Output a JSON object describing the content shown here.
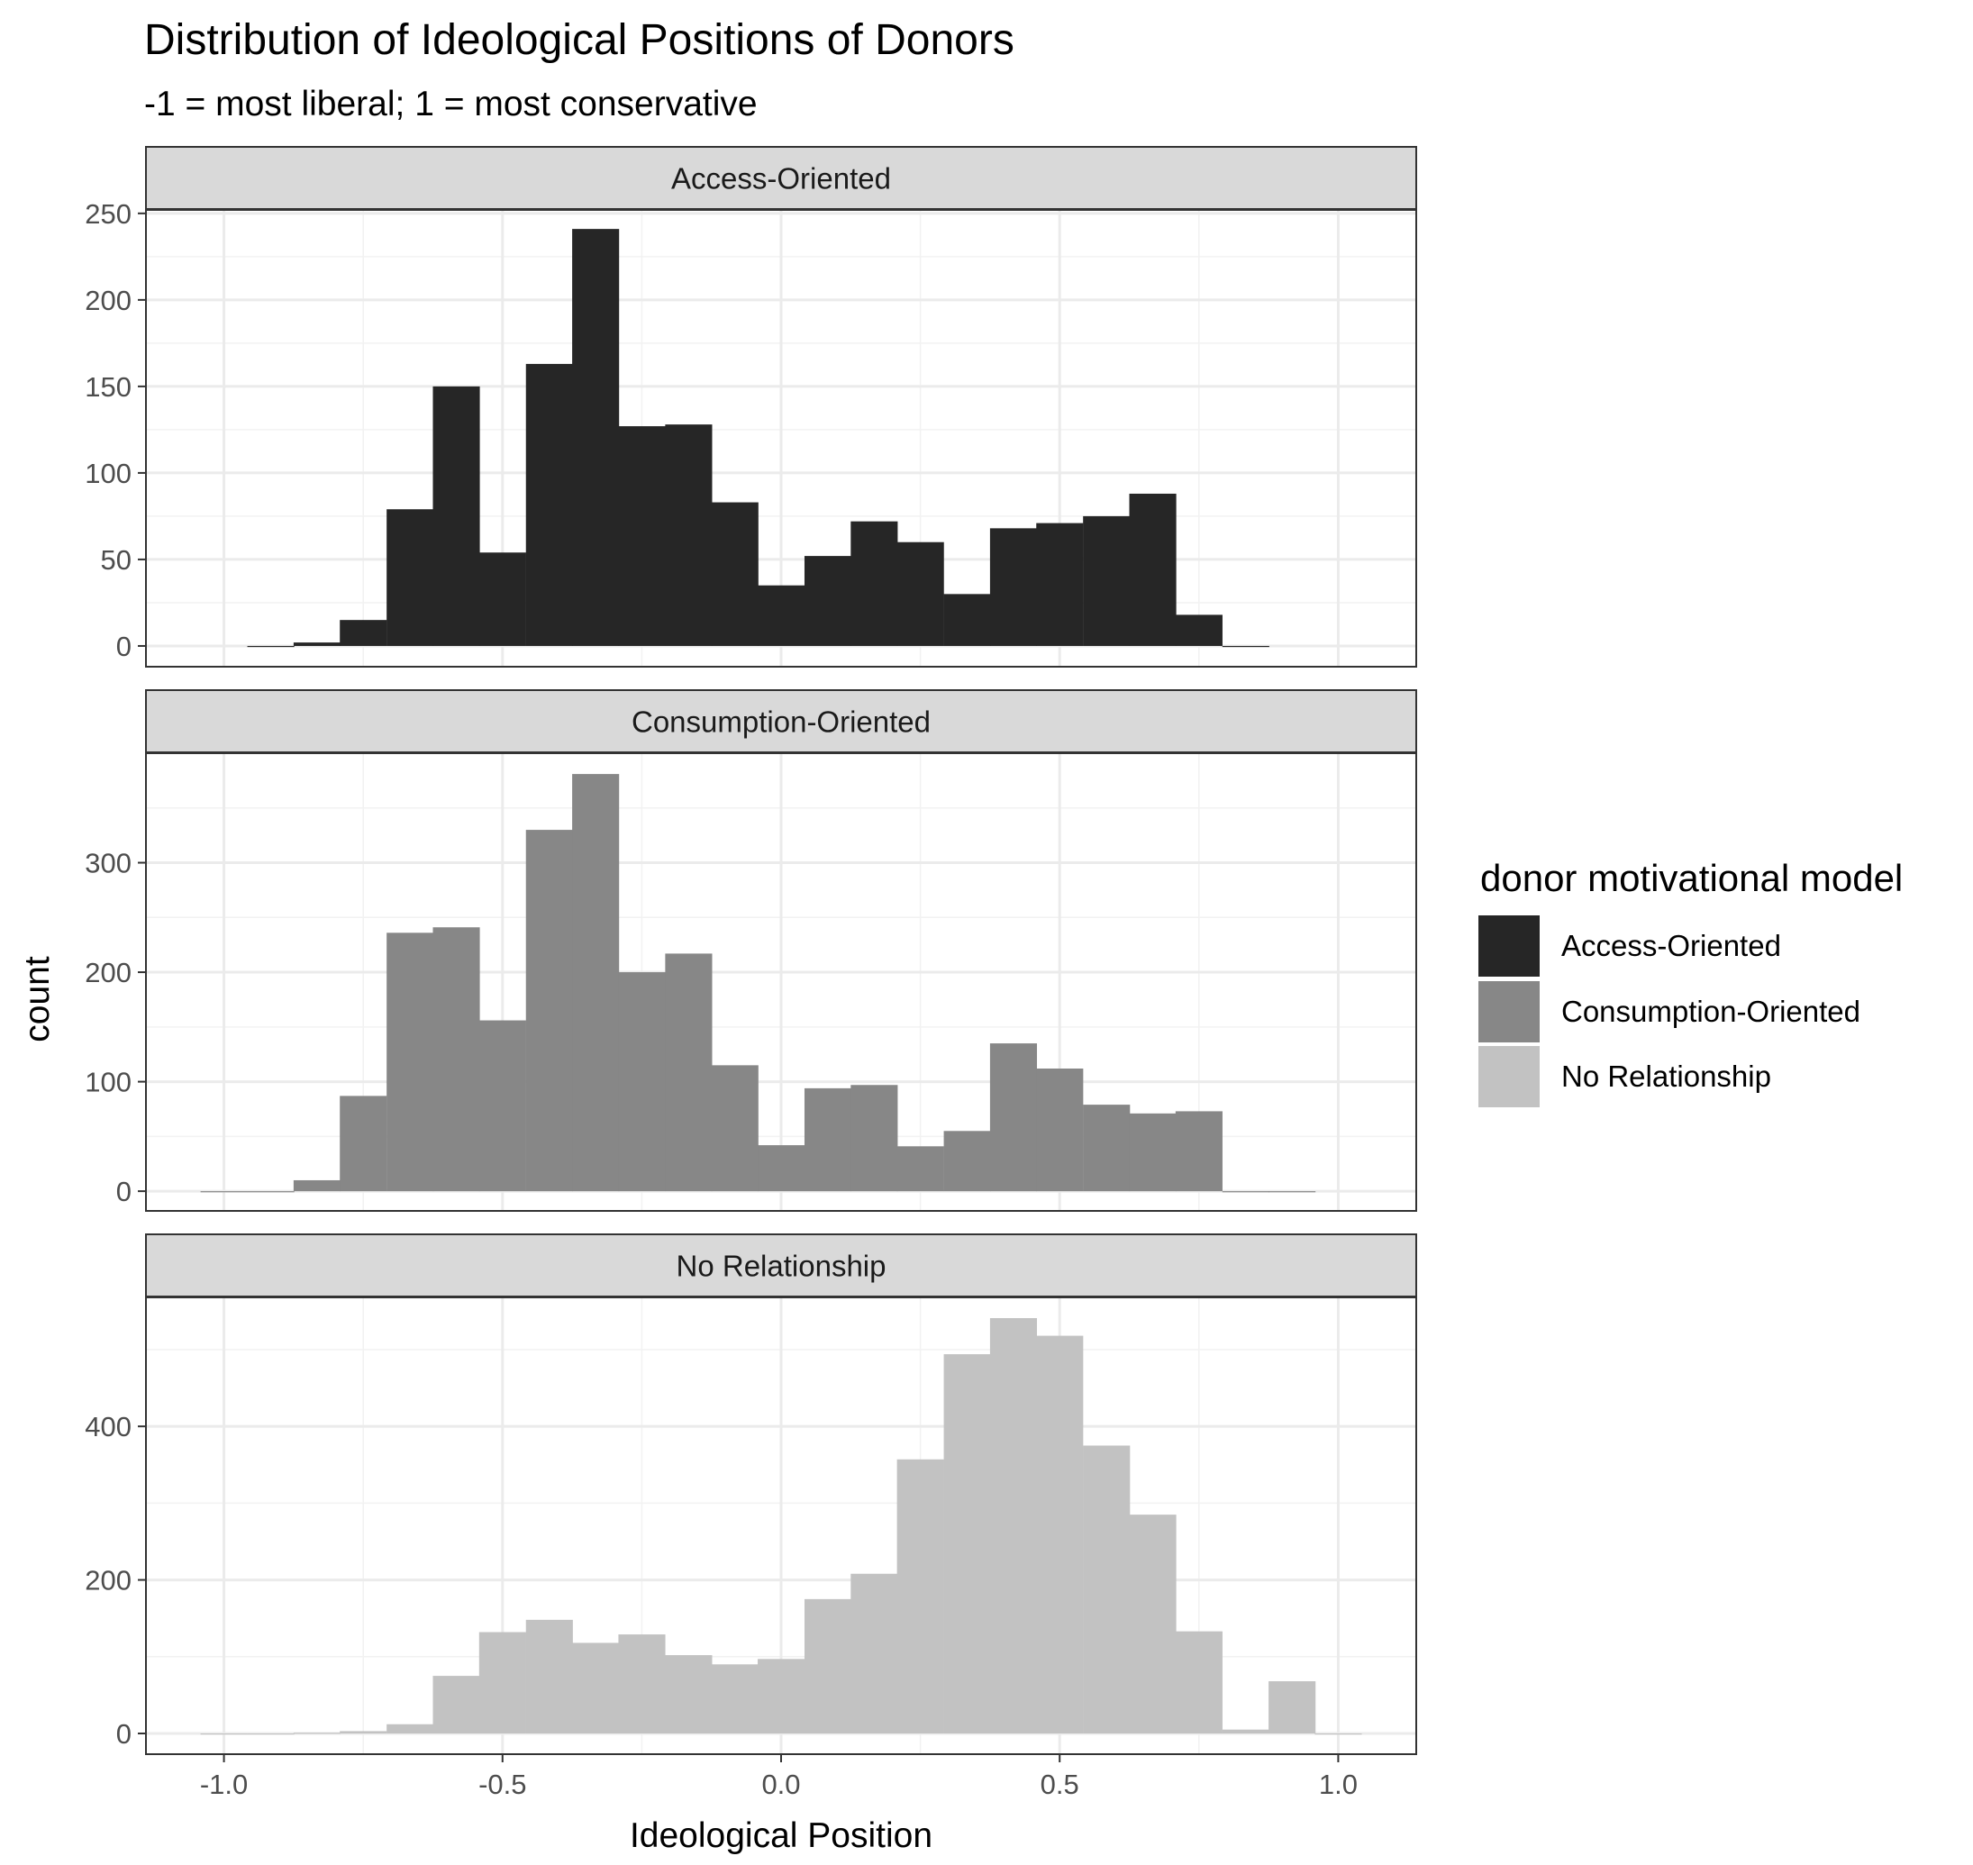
{
  "title": "Distribution of Ideological Positions of Donors",
  "subtitle": "-1 = most liberal; 1 = most conservative",
  "chart_data": {
    "type": "bar",
    "subtype": "faceted histogram",
    "title": "Distribution of Ideological Positions of Donors",
    "subtitle": "-1 = most liberal; 1 = most conservative",
    "xlabel": "Ideological Position",
    "ylabel": "count",
    "xlim": [
      -1.14,
      1.14
    ],
    "x_ticks": [
      -1.0,
      -0.5,
      0.0,
      0.5,
      1.0
    ],
    "x_tick_labels": [
      "-1.0",
      "-0.5",
      "0.0",
      "0.5",
      "1.0"
    ],
    "bin_width": 0.0833,
    "grid": true,
    "legend": {
      "title": "donor motivational model",
      "position": "right",
      "entries": [
        "Access-Oriented",
        "Consumption-Oriented",
        "No Relationship"
      ]
    },
    "facets": [
      {
        "label": "Access-Oriented",
        "color": "#262626",
        "ylim": [
          -12,
          252
        ],
        "y_ticks": [
          0,
          50,
          100,
          150,
          200,
          250
        ],
        "bins": [
          {
            "x0": -0.958,
            "count": 0
          },
          {
            "x0": -0.875,
            "count": 2
          },
          {
            "x0": -0.792,
            "count": 15
          },
          {
            "x0": -0.708,
            "count": 79
          },
          {
            "x0": -0.625,
            "count": 150
          },
          {
            "x0": -0.542,
            "count": 54
          },
          {
            "x0": -0.458,
            "count": 163
          },
          {
            "x0": -0.375,
            "count": 241
          },
          {
            "x0": -0.292,
            "count": 127
          },
          {
            "x0": -0.208,
            "count": 128
          },
          {
            "x0": -0.125,
            "count": 83
          },
          {
            "x0": -0.042,
            "count": 35
          },
          {
            "x0": 0.042,
            "count": 52
          },
          {
            "x0": 0.125,
            "count": 72
          },
          {
            "x0": 0.208,
            "count": 60
          },
          {
            "x0": 0.292,
            "count": 30
          },
          {
            "x0": 0.375,
            "count": 68
          },
          {
            "x0": 0.458,
            "count": 71
          },
          {
            "x0": 0.542,
            "count": 75
          },
          {
            "x0": 0.625,
            "count": 88
          },
          {
            "x0": 0.708,
            "count": 18
          },
          {
            "x0": 0.792,
            "count": 0
          }
        ]
      },
      {
        "label": "Consumption-Oriented",
        "color": "#878787",
        "ylim": [
          -18,
          400
        ],
        "y_ticks": [
          0,
          100,
          200,
          300
        ],
        "bins": [
          {
            "x0": -1.042,
            "count": 0
          },
          {
            "x0": -0.958,
            "count": 0
          },
          {
            "x0": -0.875,
            "count": 10
          },
          {
            "x0": -0.792,
            "count": 87
          },
          {
            "x0": -0.708,
            "count": 236
          },
          {
            "x0": -0.625,
            "count": 241
          },
          {
            "x0": -0.542,
            "count": 156
          },
          {
            "x0": -0.458,
            "count": 330
          },
          {
            "x0": -0.375,
            "count": 381
          },
          {
            "x0": -0.292,
            "count": 200
          },
          {
            "x0": -0.208,
            "count": 217
          },
          {
            "x0": -0.125,
            "count": 115
          },
          {
            "x0": -0.042,
            "count": 42
          },
          {
            "x0": 0.042,
            "count": 94
          },
          {
            "x0": 0.125,
            "count": 97
          },
          {
            "x0": 0.208,
            "count": 41
          },
          {
            "x0": 0.292,
            "count": 55
          },
          {
            "x0": 0.375,
            "count": 135
          },
          {
            "x0": 0.458,
            "count": 112
          },
          {
            "x0": 0.542,
            "count": 79
          },
          {
            "x0": 0.625,
            "count": 71
          },
          {
            "x0": 0.708,
            "count": 73
          },
          {
            "x0": 0.792,
            "count": 0
          },
          {
            "x0": 0.875,
            "count": 0
          }
        ]
      },
      {
        "label": "No Relationship",
        "color": "#c2c2c2",
        "ylim": [
          -27,
          568
        ],
        "y_ticks": [
          0,
          200,
          400
        ],
        "bins": [
          {
            "x0": -1.042,
            "count": 0
          },
          {
            "x0": -0.958,
            "count": 0
          },
          {
            "x0": -0.875,
            "count": 1
          },
          {
            "x0": -0.792,
            "count": 3
          },
          {
            "x0": -0.708,
            "count": 12
          },
          {
            "x0": -0.625,
            "count": 75
          },
          {
            "x0": -0.542,
            "count": 132
          },
          {
            "x0": -0.458,
            "count": 148
          },
          {
            "x0": -0.375,
            "count": 118
          },
          {
            "x0": -0.292,
            "count": 129
          },
          {
            "x0": -0.208,
            "count": 102
          },
          {
            "x0": -0.125,
            "count": 90
          },
          {
            "x0": -0.042,
            "count": 97
          },
          {
            "x0": 0.042,
            "count": 175
          },
          {
            "x0": 0.125,
            "count": 208
          },
          {
            "x0": 0.208,
            "count": 357
          },
          {
            "x0": 0.292,
            "count": 494
          },
          {
            "x0": 0.375,
            "count": 541
          },
          {
            "x0": 0.458,
            "count": 518
          },
          {
            "x0": 0.542,
            "count": 375
          },
          {
            "x0": 0.625,
            "count": 285
          },
          {
            "x0": 0.708,
            "count": 133
          },
          {
            "x0": 0.792,
            "count": 5
          },
          {
            "x0": 0.875,
            "count": 68
          },
          {
            "x0": 0.958,
            "count": 0
          }
        ]
      }
    ]
  }
}
